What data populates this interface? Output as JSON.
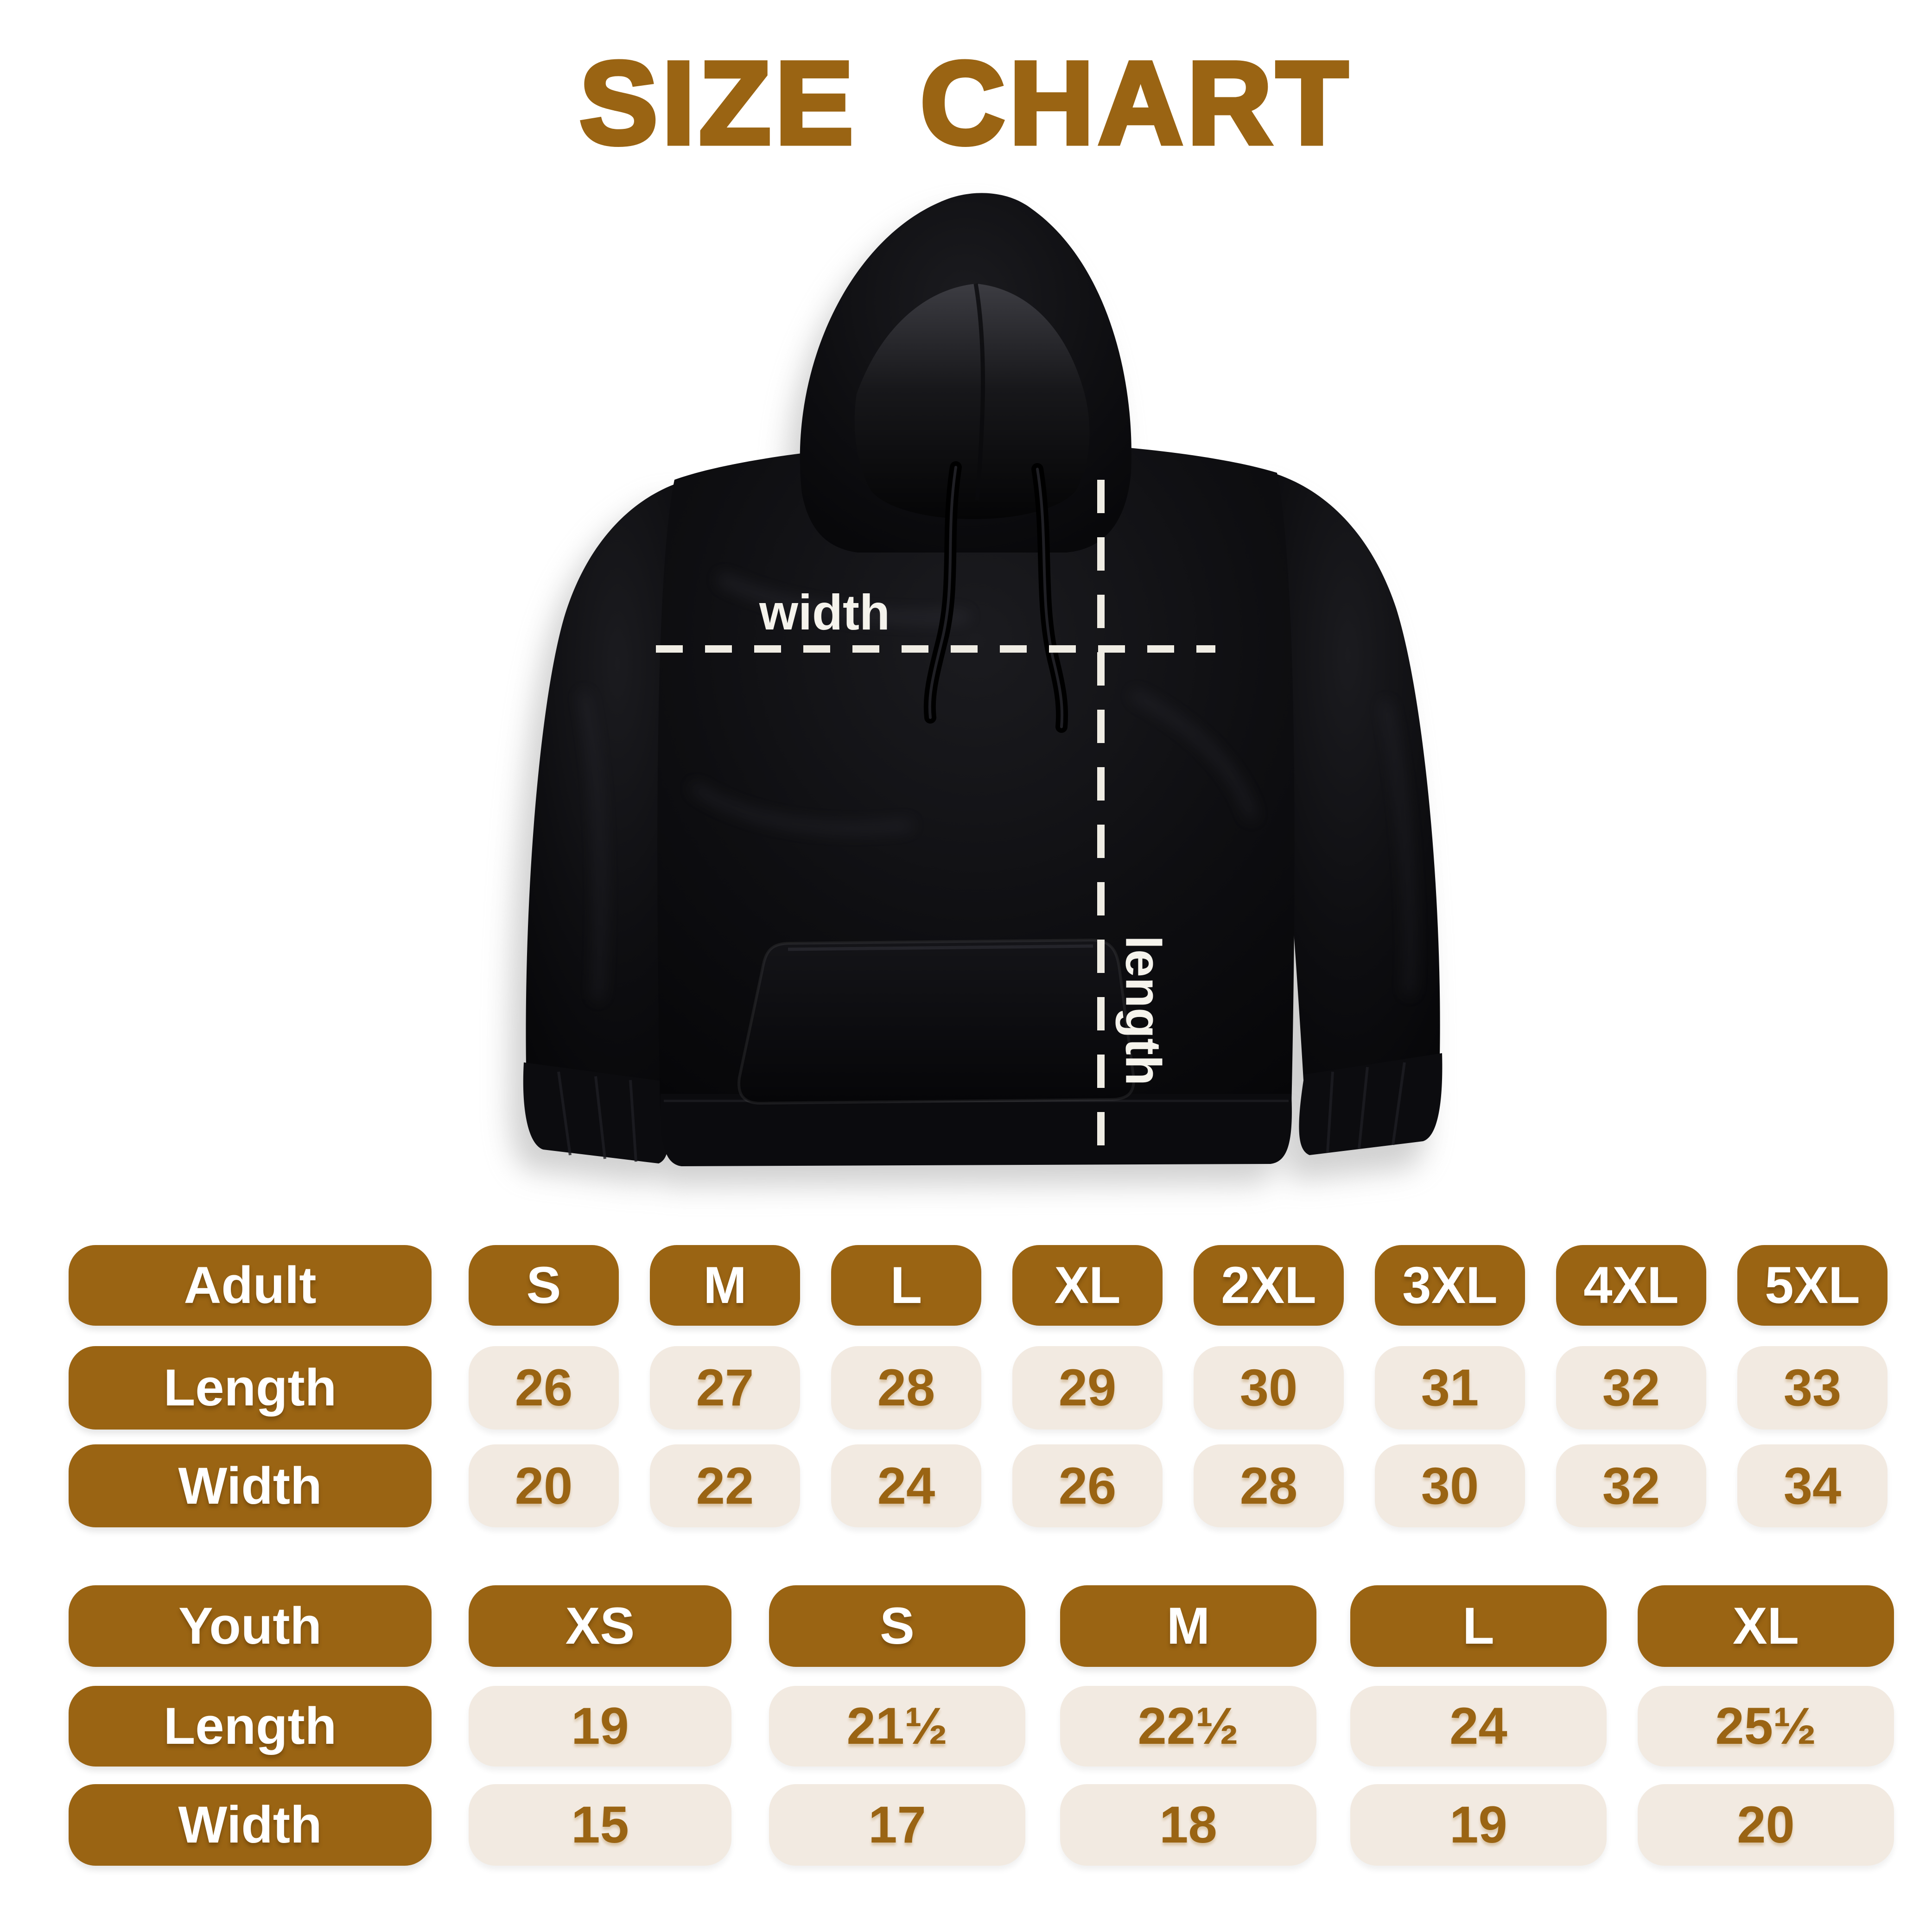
{
  "title": "SIZE CHART",
  "colors": {
    "accent": "#9A6413",
    "cell_bg": "#F2EAE1",
    "text_on_accent": "#FFFFFF",
    "value_text": "#9A6413",
    "dash_line": "#F0EDE4",
    "hoodie_black": "#0B0B0E",
    "background": "#FFFFFF"
  },
  "diagram": {
    "width_label": "width",
    "length_label": "length"
  },
  "tables": [
    {
      "id": "adult",
      "header": [
        "Adult",
        "S",
        "M",
        "L",
        "XL",
        "2XL",
        "3XL",
        "4XL",
        "5XL"
      ],
      "rows": [
        [
          "Length",
          "26",
          "27",
          "28",
          "29",
          "30",
          "31",
          "32",
          "33"
        ],
        [
          "Width",
          "20",
          "22",
          "24",
          "26",
          "28",
          "30",
          "32",
          "34"
        ]
      ]
    },
    {
      "id": "youth",
      "header": [
        "Youth",
        "XS",
        "S",
        "M",
        "L",
        "XL"
      ],
      "rows": [
        [
          "Length",
          "19",
          "21½",
          "22½",
          "24",
          "25½"
        ],
        [
          "Width",
          "15",
          "17",
          "18",
          "19",
          "20"
        ]
      ]
    }
  ]
}
